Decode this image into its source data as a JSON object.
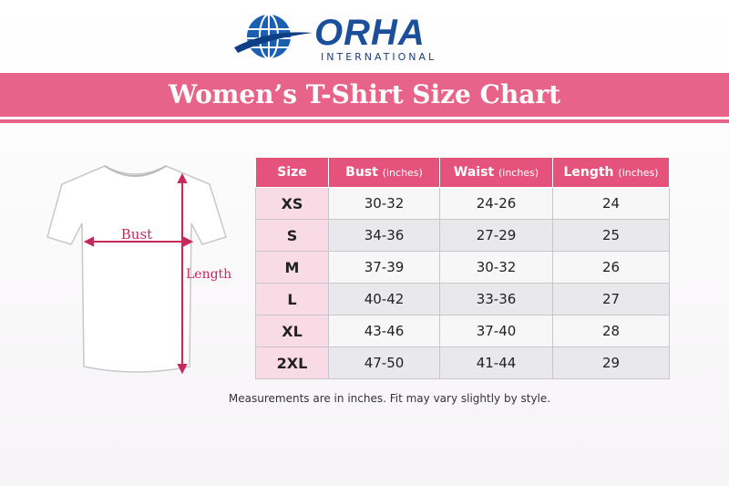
{
  "logo": {
    "name": "ORHA",
    "subtitle": "INTERNATIONAL"
  },
  "title": "Women’s T-Shirt Size Chart",
  "diagram": {
    "bust_label": "Bust",
    "length_label": "Length"
  },
  "table": {
    "columns": [
      {
        "label": "Size"
      },
      {
        "label": "Bust",
        "unit": "(inches)"
      },
      {
        "label": "Waist",
        "unit": "(inches)"
      },
      {
        "label": "Length",
        "unit": "(inches)"
      }
    ],
    "rows": [
      [
        "XS",
        "30-32",
        "24-26",
        24
      ],
      [
        "S",
        "34-36",
        "27-29",
        25
      ],
      [
        "M",
        "37-39",
        "30-32",
        26
      ],
      [
        "L",
        "40-42",
        "33-36",
        27
      ],
      [
        "XL",
        "43-46",
        "37-40",
        28
      ],
      [
        "2XL",
        "47-50",
        "41-44",
        29
      ]
    ]
  },
  "note": "Measurements are in inches. Fit may vary slightly by style."
}
